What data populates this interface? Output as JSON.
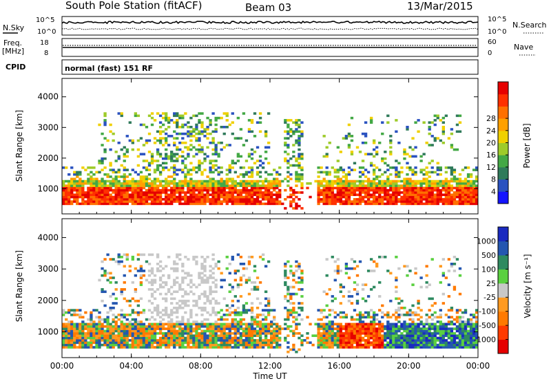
{
  "header": {
    "station": "South Pole Station (fitACF)",
    "beam": "Beam 03",
    "date": "13/Mar/2015"
  },
  "summary_panels": {
    "nsky_label": "N.Sky",
    "nsearch_label": "N.Search",
    "noise_ticks": [
      "10^5",
      "10^0"
    ],
    "freq_label_1": "Freq.",
    "freq_label_2": "[MHz]",
    "freq_ticks": [
      "18",
      "8"
    ],
    "nave_label": "Nave",
    "nave_ticks": [
      "60",
      "0"
    ],
    "cpid_label": "CPID",
    "cpid_text": "normal (fast) 151 RF"
  },
  "chart_data": [
    {
      "type": "heatmap",
      "name": "power",
      "ylabel": "Slant Range [km]",
      "ylim": [
        180,
        4600
      ],
      "yticks": [
        "1000",
        "2000",
        "3000",
        "4000"
      ],
      "colorbar_label": "Power [dB]",
      "colorbar_ticks": [
        "4",
        "8",
        "12",
        "16",
        "20",
        "24",
        "28"
      ],
      "colorbar_colors": [
        "#1414ff",
        "#2a52c0",
        "#2f7a5a",
        "#43a845",
        "#9ecb2a",
        "#f0d000",
        "#ffa000",
        "#ff7000",
        "#ff3000",
        "#e60000"
      ],
      "range_min": 0,
      "range_max": 32
    },
    {
      "type": "heatmap",
      "name": "velocity",
      "ylabel": "Slant Range [km]",
      "ylim": [
        180,
        4600
      ],
      "yticks": [
        "1000",
        "2000",
        "3000",
        "4000"
      ],
      "xlabel": "Time UT",
      "xticks": [
        "00:00",
        "04:00",
        "08:00",
        "12:00",
        "16:00",
        "20:00",
        "00:00"
      ],
      "colorbar_label": "Velocity [m s⁻¹]",
      "colorbar_ticks": [
        "1000",
        "500",
        "100",
        "25",
        "-25",
        "-100",
        "-500",
        "-1000"
      ],
      "colorbar_colors": [
        "#e60000",
        "#ff3a00",
        "#ff7a00",
        "#ff9a20",
        "#c8c8c8",
        "#5ad040",
        "#2e8a60",
        "#2456b0",
        "#1a2ac0"
      ],
      "range_min": -1200,
      "range_max": 1200
    }
  ]
}
